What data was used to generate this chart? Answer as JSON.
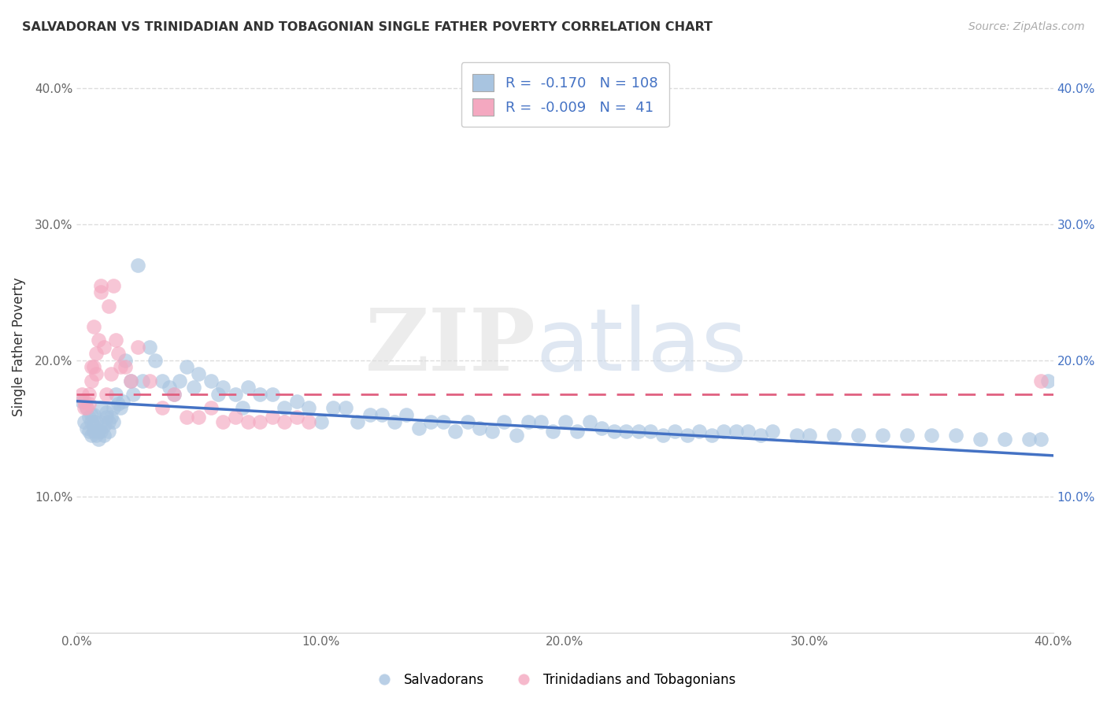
{
  "title": "SALVADORAN VS TRINIDADIAN AND TOBAGONIAN SINGLE FATHER POVERTY CORRELATION CHART",
  "source": "Source: ZipAtlas.com",
  "ylabel": "Single Father Poverty",
  "xlim": [
    0.0,
    0.4
  ],
  "ylim": [
    0.0,
    0.42
  ],
  "xticks": [
    0.0,
    0.1,
    0.2,
    0.3,
    0.4
  ],
  "yticks": [
    0.1,
    0.2,
    0.3,
    0.4
  ],
  "xtick_labels": [
    "0.0%",
    "10.0%",
    "20.0%",
    "30.0%",
    "40.0%"
  ],
  "ytick_labels": [
    "10.0%",
    "20.0%",
    "30.0%",
    "40.0%"
  ],
  "right_ytick_labels": [
    "10.0%",
    "20.0%",
    "30.0%",
    "40.0%"
  ],
  "salvadoran_color": "#a8c4e0",
  "trinidadian_color": "#f4a8c0",
  "salvadoran_line_color": "#4472c4",
  "trinidadian_line_color": "#e06080",
  "legend_label_salvadoran": "Salvadorans",
  "legend_label_trinidadian": "Trinidadians and Tobagonians",
  "R_salvadoran": -0.17,
  "N_salvadoran": 108,
  "R_trinidadian": -0.009,
  "N_trinidadian": 41,
  "sal_line_x0": 0.0,
  "sal_line_y0": 0.17,
  "sal_line_x1": 0.4,
  "sal_line_y1": 0.13,
  "tri_line_x0": 0.0,
  "tri_line_y0": 0.175,
  "tri_line_x1": 0.4,
  "tri_line_y1": 0.175,
  "salvadoran_x": [
    0.002,
    0.003,
    0.004,
    0.004,
    0.005,
    0.005,
    0.006,
    0.006,
    0.006,
    0.007,
    0.007,
    0.007,
    0.008,
    0.008,
    0.009,
    0.009,
    0.01,
    0.01,
    0.01,
    0.011,
    0.011,
    0.012,
    0.012,
    0.013,
    0.013,
    0.014,
    0.015,
    0.015,
    0.016,
    0.017,
    0.018,
    0.019,
    0.02,
    0.022,
    0.023,
    0.025,
    0.027,
    0.03,
    0.032,
    0.035,
    0.038,
    0.04,
    0.042,
    0.045,
    0.048,
    0.05,
    0.055,
    0.058,
    0.06,
    0.065,
    0.068,
    0.07,
    0.075,
    0.08,
    0.085,
    0.09,
    0.095,
    0.1,
    0.105,
    0.11,
    0.115,
    0.12,
    0.125,
    0.13,
    0.135,
    0.14,
    0.145,
    0.15,
    0.155,
    0.16,
    0.165,
    0.17,
    0.175,
    0.18,
    0.185,
    0.19,
    0.195,
    0.2,
    0.205,
    0.21,
    0.215,
    0.22,
    0.225,
    0.23,
    0.235,
    0.24,
    0.245,
    0.25,
    0.255,
    0.26,
    0.265,
    0.27,
    0.275,
    0.28,
    0.285,
    0.295,
    0.3,
    0.31,
    0.32,
    0.33,
    0.34,
    0.35,
    0.36,
    0.37,
    0.38,
    0.39,
    0.395,
    0.398
  ],
  "salvadoran_y": [
    0.17,
    0.155,
    0.165,
    0.15,
    0.158,
    0.148,
    0.16,
    0.145,
    0.155,
    0.152,
    0.148,
    0.16,
    0.145,
    0.155,
    0.148,
    0.142,
    0.155,
    0.148,
    0.165,
    0.152,
    0.145,
    0.158,
    0.162,
    0.148,
    0.155,
    0.158,
    0.165,
    0.155,
    0.175,
    0.168,
    0.165,
    0.17,
    0.2,
    0.185,
    0.175,
    0.27,
    0.185,
    0.21,
    0.2,
    0.185,
    0.18,
    0.175,
    0.185,
    0.195,
    0.18,
    0.19,
    0.185,
    0.175,
    0.18,
    0.175,
    0.165,
    0.18,
    0.175,
    0.175,
    0.165,
    0.17,
    0.165,
    0.155,
    0.165,
    0.165,
    0.155,
    0.16,
    0.16,
    0.155,
    0.16,
    0.15,
    0.155,
    0.155,
    0.148,
    0.155,
    0.15,
    0.148,
    0.155,
    0.145,
    0.155,
    0.155,
    0.148,
    0.155,
    0.148,
    0.155,
    0.15,
    0.148,
    0.148,
    0.148,
    0.148,
    0.145,
    0.148,
    0.145,
    0.148,
    0.145,
    0.148,
    0.148,
    0.148,
    0.145,
    0.148,
    0.145,
    0.145,
    0.145,
    0.145,
    0.145,
    0.145,
    0.145,
    0.145,
    0.142,
    0.142,
    0.142,
    0.142,
    0.185
  ],
  "trinidadian_x": [
    0.002,
    0.003,
    0.003,
    0.004,
    0.005,
    0.005,
    0.006,
    0.006,
    0.007,
    0.007,
    0.008,
    0.008,
    0.009,
    0.01,
    0.01,
    0.011,
    0.012,
    0.013,
    0.014,
    0.015,
    0.016,
    0.017,
    0.018,
    0.02,
    0.022,
    0.025,
    0.03,
    0.035,
    0.04,
    0.045,
    0.05,
    0.055,
    0.06,
    0.065,
    0.07,
    0.075,
    0.08,
    0.085,
    0.09,
    0.095,
    0.395
  ],
  "trinidadian_y": [
    0.175,
    0.165,
    0.17,
    0.165,
    0.175,
    0.168,
    0.195,
    0.185,
    0.195,
    0.225,
    0.19,
    0.205,
    0.215,
    0.25,
    0.255,
    0.21,
    0.175,
    0.24,
    0.19,
    0.255,
    0.215,
    0.205,
    0.195,
    0.195,
    0.185,
    0.21,
    0.185,
    0.165,
    0.175,
    0.158,
    0.158,
    0.165,
    0.155,
    0.158,
    0.155,
    0.155,
    0.158,
    0.155,
    0.158,
    0.155,
    0.185
  ]
}
